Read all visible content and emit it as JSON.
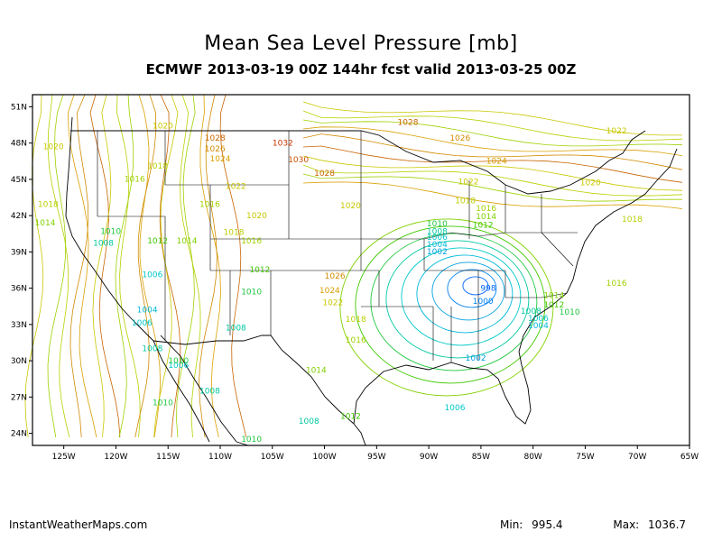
{
  "title": "Mean Sea Level Pressure [mb]",
  "subtitle": "ECMWF 2013-03-19 00Z 144hr fcst valid 2013-03-25 00Z",
  "credit": "InstantWeatherMaps.com",
  "stats": {
    "min_label": "Min:",
    "min_value": "995.4",
    "max_label": "Max:",
    "max_value": "1036.7"
  },
  "map": {
    "lon_range": [
      -128,
      -65
    ],
    "lat_range": [
      23,
      52
    ],
    "lon_ticks": [
      "125W",
      "120W",
      "115W",
      "110W",
      "105W",
      "100W",
      "95W",
      "90W",
      "85W",
      "80W",
      "75W",
      "70W",
      "65W"
    ],
    "lat_ticks": [
      "24N",
      "27N",
      "30N",
      "33N",
      "36N",
      "39N",
      "42N",
      "45N",
      "48N",
      "51N"
    ],
    "contour_labels": [
      {
        "text": "1028",
        "lon": -92,
        "lat": 49.5,
        "color": "#c86400"
      },
      {
        "text": "1026",
        "lon": -87,
        "lat": 48.2,
        "color": "#d08a00"
      },
      {
        "text": "1024",
        "lon": -83.5,
        "lat": 46.3,
        "color": "#d9a000"
      },
      {
        "text": "1022",
        "lon": -72,
        "lat": 48.8,
        "color": "#c8c800"
      },
      {
        "text": "1020",
        "lon": -126,
        "lat": 47.5,
        "color": "#c8c800"
      },
      {
        "text": "1020",
        "lon": -115.5,
        "lat": 49.2,
        "color": "#c8c800"
      },
      {
        "text": "1028",
        "lon": -110.5,
        "lat": 48.2,
        "color": "#c86400"
      },
      {
        "text": "1026",
        "lon": -110.5,
        "lat": 47.3,
        "color": "#d08a00"
      },
      {
        "text": "1024",
        "lon": -110,
        "lat": 46.5,
        "color": "#d9a000"
      },
      {
        "text": "1032",
        "lon": -104,
        "lat": 47.8,
        "color": "#c83200"
      },
      {
        "text": "1030",
        "lon": -102.5,
        "lat": 46.4,
        "color": "#c85000"
      },
      {
        "text": "1028",
        "lon": -100,
        "lat": 45.3,
        "color": "#c86400"
      },
      {
        "text": "1018",
        "lon": -116,
        "lat": 45.9,
        "color": "#b8d000"
      },
      {
        "text": "1016",
        "lon": -118.2,
        "lat": 44.8,
        "color": "#a0d000"
      },
      {
        "text": "1022",
        "lon": -108.5,
        "lat": 44.2,
        "color": "#c8c800"
      },
      {
        "text": "1018",
        "lon": -126.5,
        "lat": 42.7,
        "color": "#b8d000"
      },
      {
        "text": "1016",
        "lon": -111,
        "lat": 42.7,
        "color": "#a0d000"
      },
      {
        "text": "1014",
        "lon": -126.8,
        "lat": 41.2,
        "color": "#80d000"
      },
      {
        "text": "1020",
        "lon": -106.5,
        "lat": 41.8,
        "color": "#c8c800"
      },
      {
        "text": "1020",
        "lon": -97.5,
        "lat": 42.6,
        "color": "#c8c800"
      },
      {
        "text": "1022",
        "lon": -86.2,
        "lat": 44.6,
        "color": "#c8c800"
      },
      {
        "text": "1018",
        "lon": -86.5,
        "lat": 43.0,
        "color": "#b8d000"
      },
      {
        "text": "1016",
        "lon": -84.5,
        "lat": 42.4,
        "color": "#a0d000"
      },
      {
        "text": "1014",
        "lon": -84.5,
        "lat": 41.7,
        "color": "#80d000"
      },
      {
        "text": "1012",
        "lon": -84.8,
        "lat": 41.0,
        "color": "#40c800"
      },
      {
        "text": "1020",
        "lon": -74.5,
        "lat": 44.5,
        "color": "#c8c800"
      },
      {
        "text": "1018",
        "lon": -70.5,
        "lat": 41.5,
        "color": "#b8d000"
      },
      {
        "text": "1010",
        "lon": -120.5,
        "lat": 40.5,
        "color": "#20c840"
      },
      {
        "text": "1008",
        "lon": -121.2,
        "lat": 39.5,
        "color": "#00c8a0"
      },
      {
        "text": "1012",
        "lon": -116,
        "lat": 39.7,
        "color": "#40c800"
      },
      {
        "text": "1014",
        "lon": -113.2,
        "lat": 39.7,
        "color": "#80d000"
      },
      {
        "text": "1018",
        "lon": -108.7,
        "lat": 40.4,
        "color": "#b8d000"
      },
      {
        "text": "1016",
        "lon": -107,
        "lat": 39.7,
        "color": "#a0d000"
      },
      {
        "text": "1010",
        "lon": -89.2,
        "lat": 41.1,
        "color": "#20c840"
      },
      {
        "text": "1008",
        "lon": -89.2,
        "lat": 40.5,
        "color": "#00c8a0"
      },
      {
        "text": "1006",
        "lon": -89.2,
        "lat": 40.0,
        "color": "#00c8c8"
      },
      {
        "text": "1004",
        "lon": -89.2,
        "lat": 39.4,
        "color": "#00b8d8"
      },
      {
        "text": "1002",
        "lon": -89.2,
        "lat": 38.8,
        "color": "#00a0e0"
      },
      {
        "text": "1006",
        "lon": -116.5,
        "lat": 36.9,
        "color": "#00c8c8"
      },
      {
        "text": "1012",
        "lon": -106.2,
        "lat": 37.3,
        "color": "#40c800"
      },
      {
        "text": "1010",
        "lon": -107,
        "lat": 35.5,
        "color": "#20c840"
      },
      {
        "text": "1026",
        "lon": -99,
        "lat": 36.8,
        "color": "#d08a00"
      },
      {
        "text": "1024",
        "lon": -99.5,
        "lat": 35.6,
        "color": "#d9a000"
      },
      {
        "text": "1022",
        "lon": -99.2,
        "lat": 34.6,
        "color": "#c8c800"
      },
      {
        "text": "998",
        "lon": -84.3,
        "lat": 35.8,
        "color": "#0064ff"
      },
      {
        "text": "1000",
        "lon": -84.8,
        "lat": 34.7,
        "color": "#0080f0"
      },
      {
        "text": "1004",
        "lon": -117,
        "lat": 34.0,
        "color": "#00b8d8"
      },
      {
        "text": "1006",
        "lon": -117.5,
        "lat": 32.9,
        "color": "#00c8c8"
      },
      {
        "text": "1008",
        "lon": -108.5,
        "lat": 32.5,
        "color": "#00c8a0"
      },
      {
        "text": "1018",
        "lon": -97,
        "lat": 33.2,
        "color": "#b8d000"
      },
      {
        "text": "1016",
        "lon": -97,
        "lat": 31.5,
        "color": "#a0d000"
      },
      {
        "text": "1014",
        "lon": -78,
        "lat": 35.2,
        "color": "#80d000"
      },
      {
        "text": "1012",
        "lon": -78,
        "lat": 34.4,
        "color": "#40c800"
      },
      {
        "text": "1010",
        "lon": -76.5,
        "lat": 33.8,
        "color": "#20c840"
      },
      {
        "text": "1008",
        "lon": -80.2,
        "lat": 33.9,
        "color": "#00c8a0"
      },
      {
        "text": "1006",
        "lon": -79.5,
        "lat": 33.3,
        "color": "#00c8c8"
      },
      {
        "text": "1004",
        "lon": -79.5,
        "lat": 32.7,
        "color": "#00b8d8"
      },
      {
        "text": "1016",
        "lon": -72,
        "lat": 36.2,
        "color": "#a0d000"
      },
      {
        "text": "1008",
        "lon": -116.5,
        "lat": 30.8,
        "color": "#00c8a0"
      },
      {
        "text": "1006",
        "lon": -114,
        "lat": 29.4,
        "color": "#00c8c8"
      },
      {
        "text": "1010",
        "lon": -114,
        "lat": 29.8,
        "color": "#20c840"
      },
      {
        "text": "1014",
        "lon": -100.8,
        "lat": 29.0,
        "color": "#80d000"
      },
      {
        "text": "1002",
        "lon": -85.5,
        "lat": 30.0,
        "color": "#00a0e0"
      },
      {
        "text": "1008",
        "lon": -111,
        "lat": 27.3,
        "color": "#00c8a0"
      },
      {
        "text": "1010",
        "lon": -115.5,
        "lat": 26.3,
        "color": "#20c840"
      },
      {
        "text": "1006",
        "lon": -87.5,
        "lat": 25.9,
        "color": "#00c8c8"
      },
      {
        "text": "1012",
        "lon": -97.5,
        "lat": 25.2,
        "color": "#40c800"
      },
      {
        "text": "1008",
        "lon": -101.5,
        "lat": 24.8,
        "color": "#00c8a0"
      },
      {
        "text": "1010",
        "lon": -107,
        "lat": 23.3,
        "color": "#20c840"
      }
    ],
    "low_center": {
      "lon": -85,
      "lat": 36.5
    }
  }
}
